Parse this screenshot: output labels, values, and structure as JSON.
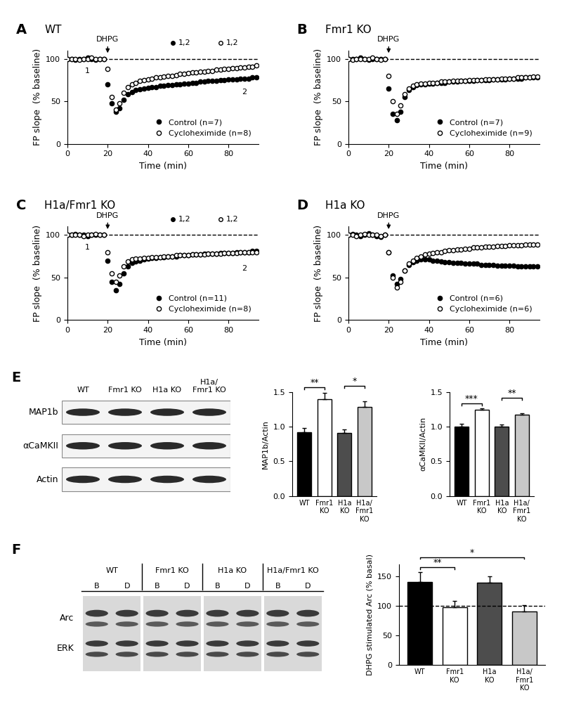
{
  "chart_data": [
    {
      "panel_label": "A",
      "type": "scatter",
      "title": "WT",
      "x_label": "Time (min)",
      "y_label": "FP slope  (% baseline)",
      "x": [
        0,
        2,
        4,
        6,
        8,
        10,
        12,
        14,
        16,
        18,
        20,
        22,
        24,
        26,
        28,
        30,
        32,
        34,
        36,
        38,
        40,
        42,
        44,
        46,
        48,
        50,
        52,
        54,
        56,
        58,
        60,
        62,
        64,
        66,
        68,
        70,
        72,
        74,
        76,
        78,
        80,
        82,
        84,
        86,
        88,
        90,
        92,
        94
      ],
      "xlim": [
        0,
        95
      ],
      "xticks": [
        0,
        20,
        40,
        60,
        80
      ],
      "ylim": [
        0,
        110
      ],
      "yticks": [
        0,
        50,
        100
      ],
      "hline": 100,
      "legend": "lower right",
      "stimulus": {
        "label": "DHPG",
        "time": 20
      },
      "epoch_labels": [
        {
          "label": "1",
          "time": 10
        },
        {
          "label": "2",
          "time": 88
        }
      ],
      "inset_labels": [
        "1,2",
        "1,2"
      ],
      "series": [
        {
          "name": "Control (n=7)",
          "color": "#000000",
          "marker": "o",
          "values": [
            100,
            100,
            99,
            100,
            100,
            101,
            100,
            99,
            100,
            100,
            70,
            48,
            38,
            42,
            52,
            58,
            61,
            63,
            64,
            65,
            66,
            67,
            67,
            68,
            68,
            69,
            69,
            70,
            70,
            71,
            71,
            72,
            72,
            73,
            73,
            74,
            74,
            74,
            75,
            75,
            76,
            76,
            76,
            77,
            77,
            77,
            78,
            78
          ]
        },
        {
          "name": "Cycloheximide (n=8)",
          "color": "#ffffff",
          "marker": "o",
          "values": [
            100,
            100,
            100,
            99,
            100,
            100,
            101,
            100,
            100,
            100,
            88,
            55,
            40,
            48,
            60,
            67,
            70,
            72,
            74,
            75,
            76,
            77,
            78,
            78,
            79,
            80,
            80,
            81,
            82,
            82,
            83,
            84,
            84,
            85,
            85,
            86,
            86,
            87,
            87,
            88,
            88,
            89,
            89,
            90,
            90,
            91,
            91,
            92
          ]
        }
      ]
    },
    {
      "panel_label": "B",
      "type": "scatter",
      "title": "Fmr1 KO",
      "x_label": "Time (min)",
      "y_label": "FP slope  (% baseline)",
      "x": [
        0,
        2,
        4,
        6,
        8,
        10,
        12,
        14,
        16,
        18,
        20,
        22,
        24,
        26,
        28,
        30,
        32,
        34,
        36,
        38,
        40,
        42,
        44,
        46,
        48,
        50,
        52,
        54,
        56,
        58,
        60,
        62,
        64,
        66,
        68,
        70,
        72,
        74,
        76,
        78,
        80,
        82,
        84,
        86,
        88,
        90,
        92,
        94
      ],
      "xlim": [
        0,
        95
      ],
      "xticks": [
        0,
        20,
        40,
        60,
        80
      ],
      "ylim": [
        0,
        110
      ],
      "yticks": [
        0,
        50,
        100
      ],
      "hline": 100,
      "legend": "lower right",
      "stimulus": {
        "label": "DHPG",
        "time": 20
      },
      "series": [
        {
          "name": "Control (n=7)",
          "color": "#000000",
          "marker": "o",
          "values": [
            100,
            100,
            100,
            101,
            100,
            99,
            100,
            100,
            100,
            100,
            65,
            35,
            28,
            38,
            55,
            63,
            67,
            69,
            70,
            70,
            71,
            71,
            72,
            72,
            72,
            73,
            73,
            73,
            74,
            74,
            74,
            74,
            75,
            75,
            75,
            75,
            76,
            76,
            76,
            76,
            77,
            77,
            77,
            77,
            78,
            78,
            78,
            78
          ]
        },
        {
          "name": "Cycloheximide (n=9)",
          "color": "#ffffff",
          "marker": "o",
          "values": [
            100,
            99,
            100,
            100,
            100,
            100,
            101,
            100,
            99,
            100,
            80,
            50,
            35,
            45,
            58,
            65,
            68,
            70,
            71,
            71,
            72,
            72,
            72,
            73,
            73,
            73,
            74,
            74,
            74,
            74,
            75,
            75,
            75,
            75,
            76,
            76,
            76,
            76,
            77,
            77,
            77,
            77,
            78,
            78,
            78,
            78,
            79,
            79
          ]
        }
      ]
    },
    {
      "panel_label": "C",
      "type": "scatter",
      "title": "H1a/Fmr1 KO",
      "x_label": "Time (min)",
      "y_label": "FP slope  (% baseline)",
      "x": [
        0,
        2,
        4,
        6,
        8,
        10,
        12,
        14,
        16,
        18,
        20,
        22,
        24,
        26,
        28,
        30,
        32,
        34,
        36,
        38,
        40,
        42,
        44,
        46,
        48,
        50,
        52,
        54,
        56,
        58,
        60,
        62,
        64,
        66,
        68,
        70,
        72,
        74,
        76,
        78,
        80,
        82,
        84,
        86,
        88,
        90,
        92,
        94
      ],
      "xlim": [
        0,
        95
      ],
      "xticks": [
        0,
        20,
        40,
        60,
        80
      ],
      "ylim": [
        0,
        110
      ],
      "yticks": [
        0,
        50,
        100
      ],
      "hline": 100,
      "legend": "lower right",
      "stimulus": {
        "label": "DHPG",
        "time": 20
      },
      "epoch_labels": [
        {
          "label": "1",
          "time": 10
        },
        {
          "label": "2",
          "time": 88
        }
      ],
      "inset_labels": [
        "1,2",
        "1,2"
      ],
      "series": [
        {
          "name": "Control (n=11)",
          "color": "#000000",
          "marker": "o",
          "values": [
            100,
            100,
            101,
            100,
            100,
            99,
            100,
            100,
            100,
            100,
            70,
            45,
            35,
            42,
            55,
            63,
            67,
            69,
            70,
            71,
            72,
            73,
            73,
            74,
            74,
            75,
            75,
            75,
            76,
            76,
            76,
            77,
            77,
            77,
            78,
            78,
            78,
            78,
            79,
            79,
            79,
            79,
            80,
            80,
            80,
            80,
            81,
            81
          ]
        },
        {
          "name": "Cycloheximide (n=8)",
          "color": "#ffffff",
          "marker": "o",
          "values": [
            100,
            100,
            100,
            100,
            99,
            100,
            100,
            101,
            100,
            100,
            80,
            55,
            45,
            52,
            63,
            69,
            71,
            72,
            72,
            73,
            73,
            74,
            74,
            74,
            75,
            75,
            75,
            76,
            76,
            76,
            76,
            77,
            77,
            77,
            77,
            78,
            78,
            78,
            78,
            79,
            79,
            79,
            79,
            80,
            80,
            80,
            80,
            80
          ]
        }
      ]
    },
    {
      "panel_label": "D",
      "type": "scatter",
      "title": "H1a KO",
      "x_label": "Time (min)",
      "y_label": "FP slope  (% baseline)",
      "x": [
        0,
        2,
        4,
        6,
        8,
        10,
        12,
        14,
        16,
        18,
        20,
        22,
        24,
        26,
        28,
        30,
        32,
        34,
        36,
        38,
        40,
        42,
        44,
        46,
        48,
        50,
        52,
        54,
        56,
        58,
        60,
        62,
        64,
        66,
        68,
        70,
        72,
        74,
        76,
        78,
        80,
        82,
        84,
        86,
        88,
        90,
        92,
        94
      ],
      "xlim": [
        0,
        95
      ],
      "xticks": [
        0,
        20,
        40,
        60,
        80
      ],
      "ylim": [
        0,
        110
      ],
      "yticks": [
        0,
        50,
        100
      ],
      "hline": 100,
      "legend": "lower right",
      "stimulus": {
        "label": "DHPG",
        "time": 20
      },
      "series": [
        {
          "name": "Control (n=6)",
          "color": "#000000",
          "marker": "o",
          "values": [
            100,
            101,
            100,
            99,
            100,
            102,
            100,
            99,
            98,
            100,
            80,
            52,
            42,
            48,
            58,
            65,
            68,
            70,
            71,
            71,
            71,
            70,
            70,
            69,
            68,
            68,
            67,
            67,
            67,
            66,
            66,
            66,
            66,
            65,
            65,
            65,
            65,
            64,
            64,
            64,
            64,
            64,
            63,
            63,
            63,
            63,
            63,
            63
          ]
        },
        {
          "name": "Cycloheximide (n=6)",
          "color": "#ffffff",
          "marker": "o",
          "values": [
            100,
            100,
            99,
            100,
            101,
            100,
            100,
            100,
            99,
            100,
            80,
            50,
            38,
            45,
            58,
            66,
            70,
            73,
            75,
            77,
            78,
            79,
            80,
            80,
            81,
            82,
            82,
            83,
            83,
            84,
            84,
            85,
            85,
            85,
            86,
            86,
            86,
            87,
            87,
            87,
            88,
            88,
            88,
            88,
            89,
            89,
            89,
            89
          ]
        }
      ]
    },
    {
      "type": "bar",
      "y_label": "MAP1b/Actin",
      "categories": [
        "WT",
        "Fmr1 KO",
        "H1a KO",
        "H1a/Fmr1 KO"
      ],
      "values": [
        0.92,
        1.39,
        0.91,
        1.28
      ],
      "errors": [
        0.06,
        0.1,
        0.05,
        0.08
      ],
      "colors": [
        "#000000",
        "#ffffff",
        "#4d4d4d",
        "#c8c8c8"
      ],
      "ylim": [
        0,
        1.5
      ],
      "yticks": [
        {
          "value": 0,
          "label": "0.0"
        },
        {
          "value": 0.5,
          "label": "0.5"
        },
        {
          "value": 1,
          "label": "1.0"
        },
        {
          "value": 1.5,
          "label": "1.5"
        }
      ],
      "significance": [
        {
          "from": 0,
          "to": 1,
          "label": "**"
        },
        {
          "from": 2,
          "to": 3,
          "label": "*"
        }
      ]
    },
    {
      "type": "bar",
      "y_label": "αCaMKII/Actin",
      "categories": [
        "WT",
        "Fmr1 KO",
        "H1a KO",
        "H1a/Fmr1 KO"
      ],
      "values": [
        1.0,
        1.24,
        1.0,
        1.17
      ],
      "errors": [
        0.04,
        0.02,
        0.03,
        0.02
      ],
      "colors": [
        "#000000",
        "#ffffff",
        "#4d4d4d",
        "#c8c8c8"
      ],
      "ylim": [
        0,
        1.5
      ],
      "yticks": [
        {
          "value": 0,
          "label": "0.0"
        },
        {
          "value": 0.5,
          "label": "0.5"
        },
        {
          "value": 1,
          "label": "1.0"
        },
        {
          "value": 1.5,
          "label": "1.5"
        }
      ],
      "significance": [
        {
          "from": 0,
          "to": 1,
          "label": "***"
        },
        {
          "from": 2,
          "to": 3,
          "label": "**"
        }
      ]
    },
    {
      "type": "bar",
      "y_label": "DHPG stimulated Arc (% basal)",
      "categories": [
        "WT",
        "Fmr1 KO",
        "H1a KO",
        "H1a/Fmr1 KO"
      ],
      "values": [
        140,
        98,
        139,
        91
      ],
      "errors": [
        17,
        10,
        11,
        10
      ],
      "colors": [
        "#000000",
        "#ffffff",
        "#4d4d4d",
        "#c8c8c8"
      ],
      "ylim": [
        0,
        170
      ],
      "yticks": [
        0,
        50,
        100,
        150
      ],
      "hline": 100,
      "significance": [
        {
          "from": 0,
          "to": 1,
          "label": "**"
        },
        {
          "from": 0,
          "to": 3,
          "label": "*"
        }
      ]
    }
  ],
  "blots": [
    {
      "panel_label": "E",
      "lanes": [
        "WT",
        "Fmr1 KO",
        "H1a KO",
        "H1a/Fmr1 KO"
      ],
      "rows": [
        "MAP1b",
        "αCaMKII",
        "Actin"
      ]
    },
    {
      "panel_label": "F",
      "groups": [
        "WT",
        "Fmr1 KO",
        "H1a KO",
        "H1a/Fmr1 KO"
      ],
      "lanes": [
        "B",
        "D"
      ],
      "rows": [
        "Arc",
        "ERK"
      ]
    }
  ]
}
